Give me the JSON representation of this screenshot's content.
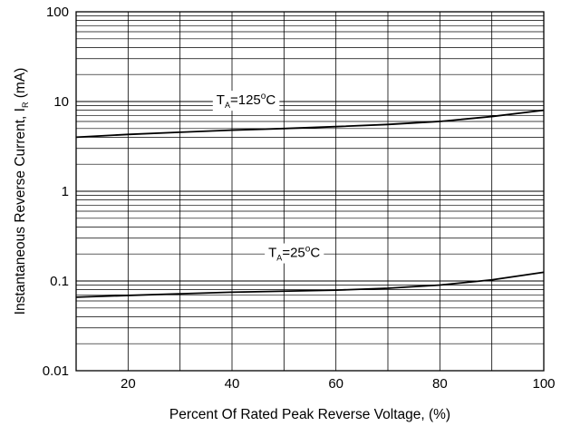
{
  "chart_data": {
    "type": "line",
    "title": "",
    "xlabel": "Percent Of Rated Peak Reverse Voltage, (%)",
    "ylabel_main": "Instantaneous Reverse Current, I",
    "ylabel_sub": "R",
    "ylabel_unit": " (mA)",
    "y_scale": "log",
    "xlim": [
      10,
      100
    ],
    "ylim": [
      0.01,
      100
    ],
    "grid": true,
    "x_ticks": [
      20,
      40,
      60,
      80,
      100
    ],
    "x_tick_labels": [
      "20",
      "40",
      "60",
      "80",
      "100"
    ],
    "y_ticks": [
      0.01,
      0.1,
      1,
      10,
      100
    ],
    "y_tick_labels": [
      "0.01",
      "0.1",
      "1",
      "10",
      "100"
    ],
    "series": [
      {
        "label_prefix": "T",
        "label_sub": "A",
        "label_value": "=125",
        "label_sup": "o",
        "label_unit": "C",
        "label_at": [
          37,
          9.3
        ],
        "x": [
          10,
          20,
          30,
          40,
          50,
          60,
          70,
          80,
          90,
          100
        ],
        "y": [
          4.0,
          4.3,
          4.55,
          4.8,
          5.0,
          5.25,
          5.55,
          6.0,
          6.8,
          8.0
        ]
      },
      {
        "label_prefix": "T",
        "label_sub": "A",
        "label_value": "=25",
        "label_sup": "o",
        "label_unit": "C",
        "label_at": [
          47,
          0.185
        ],
        "x": [
          10,
          20,
          30,
          40,
          50,
          60,
          70,
          80,
          90,
          100
        ],
        "y": [
          0.066,
          0.069,
          0.072,
          0.075,
          0.077,
          0.079,
          0.083,
          0.09,
          0.103,
          0.125
        ]
      }
    ]
  }
}
